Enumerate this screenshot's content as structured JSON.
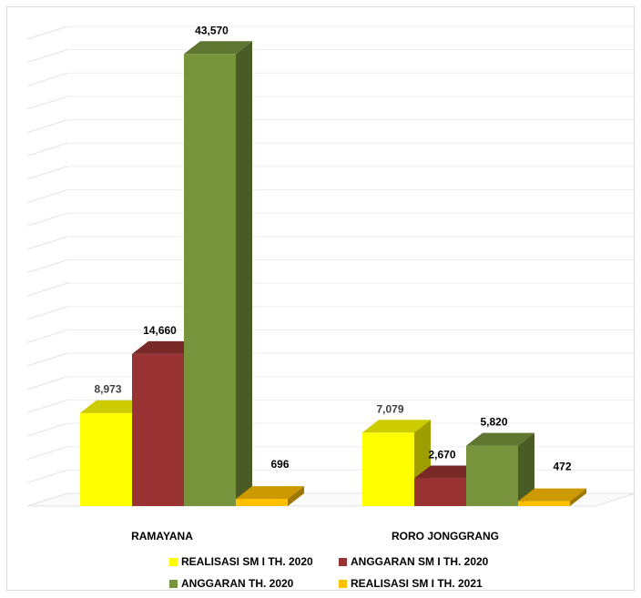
{
  "chart_data": {
    "type": "bar",
    "title": "",
    "xlabel": "",
    "ylabel": "",
    "ylim": [
      0,
      45000
    ],
    "grid": true,
    "legend_position": "bottom",
    "categories": [
      "RAMAYANA",
      "RORO JONGGRANG"
    ],
    "series": [
      {
        "name": "REALISASI SM I TH. 2020",
        "values": [
          8973,
          7079
        ],
        "labels": [
          "8,973",
          "7,079"
        ],
        "color": "#ffff00"
      },
      {
        "name": "ANGGARAN SM I TH. 2020",
        "values": [
          14660,
          2670
        ],
        "labels": [
          "14,660",
          "2,670"
        ],
        "color": "#993333"
      },
      {
        "name": "ANGGARAN TH. 2020",
        "values": [
          43570,
          5820
        ],
        "labels": [
          "43,570",
          "5,820"
        ],
        "color": "#77933c"
      },
      {
        "name": "REALISASI SM I TH. 2021",
        "values": [
          696,
          472
        ],
        "labels": [
          "696",
          "472"
        ],
        "color": "#ffc000"
      }
    ]
  }
}
